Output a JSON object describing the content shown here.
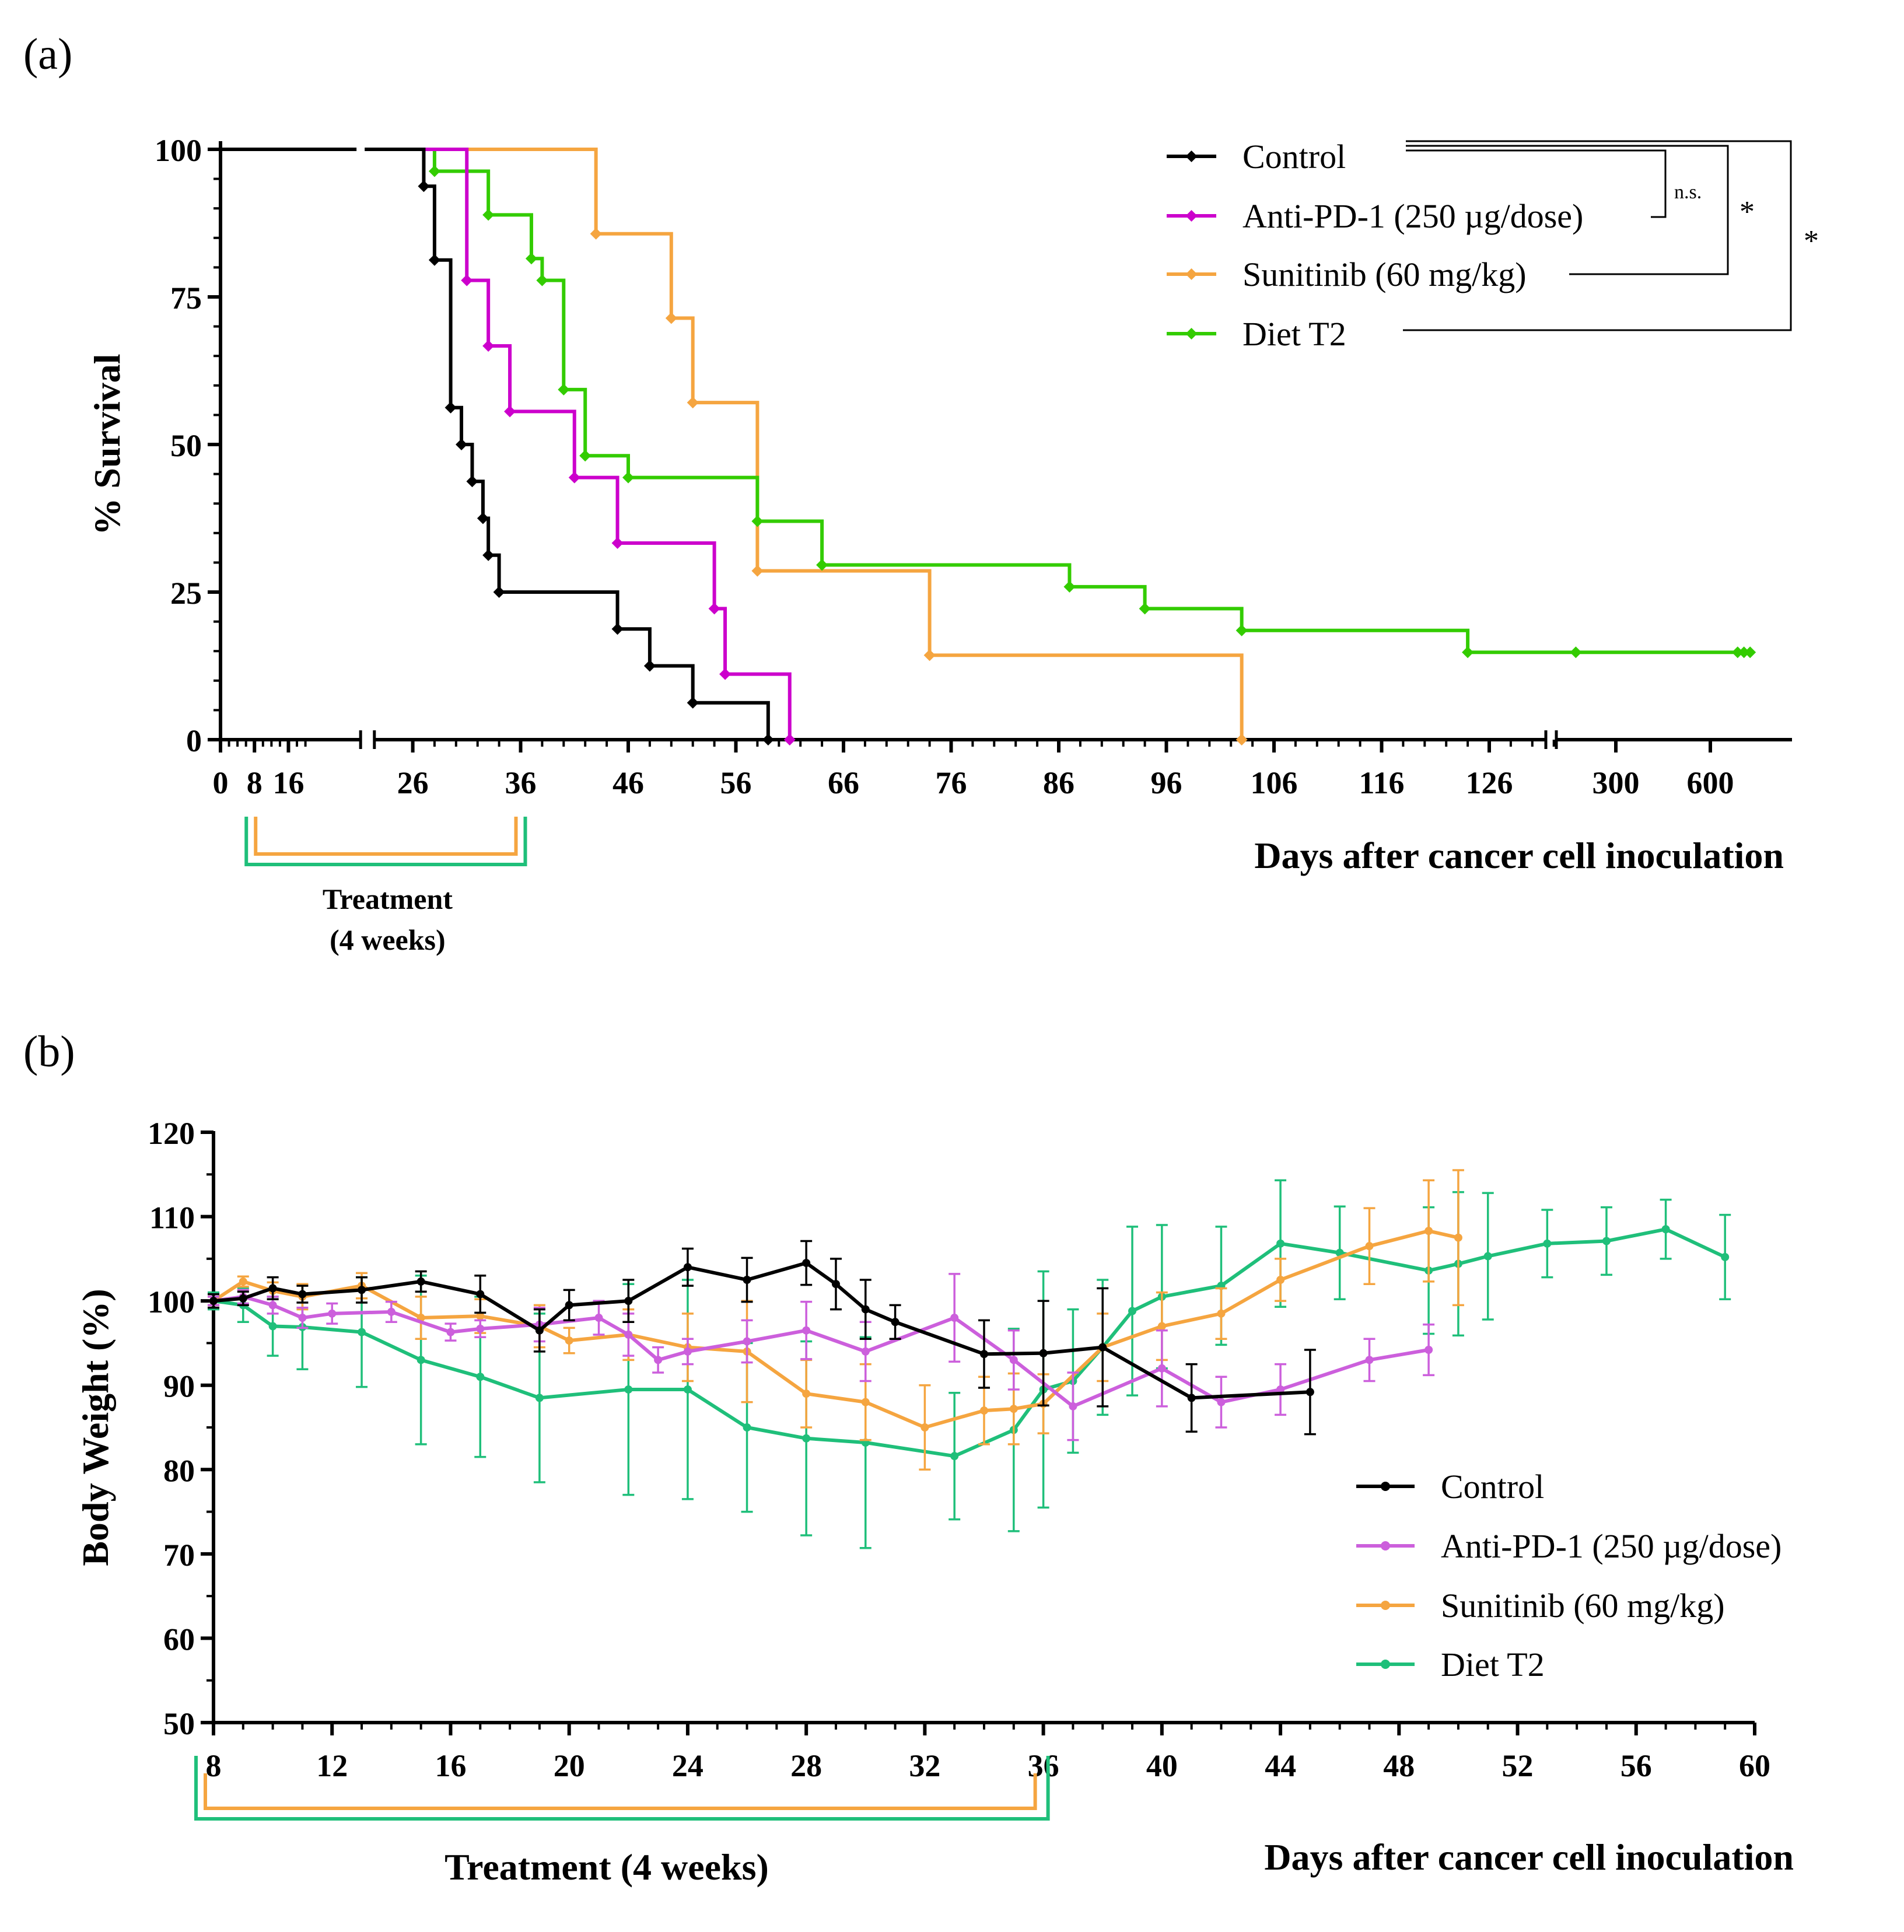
{
  "figure": {
    "panel_a_label": "(a)",
    "panel_b_label": "(b)"
  },
  "colors": {
    "Control": "#000000",
    "Anti-PD-1 (250 µg/dose)": "#cc00cc",
    "Sunitinib (60 mg/kg)": "#f5a540",
    "Diet T2": "#33cc00",
    "Diet T2 (b)": "#1fbf7a",
    "Anti-PD-1 (b)": "#cc5fdc",
    "axis": "#000000"
  },
  "chart_data": [
    {
      "type": "line",
      "subtype": "kaplan-meier",
      "title": "",
      "xlabel": "Days after cancer cell inoculation",
      "ylabel": "% Survival",
      "ylim": [
        0,
        100
      ],
      "yticks": [
        "0",
        "25",
        "50",
        "75",
        "100"
      ],
      "xticks": [
        "0",
        "8",
        "16",
        "26",
        "36",
        "46",
        "56",
        "66",
        "76",
        "86",
        "96",
        "106",
        "116",
        "126",
        "300",
        "600"
      ],
      "x_axis_breaks": [
        [
          22,
          24
        ],
        [
          134,
          150
        ]
      ],
      "legend_position": "top-right",
      "series": [
        {
          "name": "Control",
          "steps": [
            [
              0,
              100
            ],
            [
              27,
              100
            ],
            [
              27,
              93.75
            ],
            [
              28,
              81.25
            ],
            [
              29.5,
              56.25
            ],
            [
              30.5,
              50
            ],
            [
              31.5,
              43.75
            ],
            [
              32.5,
              37.5
            ],
            [
              33,
              31.25
            ],
            [
              34,
              25
            ],
            [
              45,
              18.75
            ],
            [
              48,
              12.5
            ],
            [
              52,
              6.25
            ],
            [
              59,
              0
            ]
          ],
          "censored": []
        },
        {
          "name": "Anti-PD-1 (250 µg/dose)",
          "steps": [
            [
              0,
              100
            ],
            [
              31,
              100
            ],
            [
              31,
              77.8
            ],
            [
              33,
              66.7
            ],
            [
              35,
              55.6
            ],
            [
              41,
              44.4
            ],
            [
              45,
              33.3
            ],
            [
              54,
              22.2
            ],
            [
              55,
              11.1
            ],
            [
              61,
              0
            ]
          ],
          "censored": []
        },
        {
          "name": "Sunitinib (60 mg/kg)",
          "steps": [
            [
              0,
              100
            ],
            [
              43,
              100
            ],
            [
              43,
              85.7
            ],
            [
              50,
              71.4
            ],
            [
              52,
              57.1
            ],
            [
              58,
              28.6
            ],
            [
              74,
              14.3
            ],
            [
              103,
              0
            ]
          ],
          "censored": []
        },
        {
          "name": "Diet T2",
          "steps": [
            [
              0,
              100
            ],
            [
              28,
              100
            ],
            [
              28,
              96.3
            ],
            [
              33,
              88.9
            ],
            [
              37,
              81.5
            ],
            [
              38,
              77.8
            ],
            [
              40,
              59.3
            ],
            [
              42,
              48.1
            ],
            [
              46,
              44.4
            ],
            [
              58,
              37.0
            ],
            [
              64,
              29.6
            ],
            [
              87,
              25.9
            ],
            [
              94,
              22.2
            ],
            [
              103,
              18.5
            ],
            [
              124,
              14.8
            ]
          ],
          "censored": [
            300,
            650,
            670,
            690
          ]
        }
      ],
      "significance": [
        {
          "comparison": "Control vs Anti-PD-1 (250 µg/dose)",
          "label": "n.s."
        },
        {
          "comparison": "Control vs Sunitinib (60 mg/kg)",
          "label": "*"
        },
        {
          "comparison": "Control vs Diet T2",
          "label": "*"
        }
      ],
      "annotation": {
        "label": "Treatment",
        "sublabel": "(4 weeks)",
        "start_day": 8,
        "end_day": 36
      }
    },
    {
      "type": "line",
      "title": "",
      "xlabel": "Days after cancer cell inoculation",
      "ylabel": "Body Weight (%)",
      "xlim": [
        8,
        60
      ],
      "ylim": [
        50,
        120
      ],
      "xticks": [
        "8",
        "12",
        "16",
        "20",
        "24",
        "28",
        "32",
        "36",
        "40",
        "44",
        "48",
        "52",
        "56",
        "60"
      ],
      "yticks": [
        "50",
        "60",
        "70",
        "80",
        "90",
        "100",
        "110",
        "120"
      ],
      "legend_position": "bottom-right",
      "series": [
        {
          "name": "Control",
          "x": [
            8,
            9,
            10,
            11,
            13,
            15,
            17,
            19,
            20,
            22,
            24,
            26,
            28,
            29,
            30,
            31,
            34,
            36,
            38,
            41,
            45
          ],
          "y": [
            100,
            100.3,
            101.5,
            100.8,
            101.3,
            102.3,
            100.8,
            96.5,
            99.5,
            100,
            104,
            102.5,
            104.5,
            102,
            99,
            97.5,
            93.7,
            93.8,
            94.5,
            88.5,
            89.2
          ],
          "err": [
            0.8,
            0.8,
            1.3,
            1.0,
            1.5,
            1.2,
            2.2,
            2.5,
            1.8,
            2.5,
            2.2,
            2.6,
            2.6,
            3,
            3.5,
            2,
            4,
            6.2,
            7,
            4,
            5
          ]
        },
        {
          "name": "Anti-PD-1 (250 µg/dose)",
          "x": [
            8,
            9,
            10,
            11,
            12,
            14,
            16,
            17,
            19,
            21,
            22,
            23,
            24,
            26,
            28,
            30,
            33,
            35,
            37,
            40,
            42,
            44,
            47,
            49
          ],
          "y": [
            100,
            100.5,
            99.5,
            98,
            98.5,
            98.7,
            96.3,
            96.7,
            97.2,
            98,
            96,
            93,
            94,
            95.2,
            96.5,
            94,
            98,
            93,
            87.5,
            92,
            88,
            89.5,
            93,
            94.2
          ],
          "err": [
            0.5,
            0.8,
            1,
            1.2,
            1.2,
            1.2,
            1,
            1,
            2,
            2,
            2.5,
            1.5,
            1.5,
            2.5,
            3.4,
            3.5,
            5.2,
            3.5,
            4,
            4.5,
            3,
            3,
            2.5,
            3
          ]
        },
        {
          "name": "Sunitinib (60 mg/kg)",
          "x": [
            8,
            9,
            10,
            11,
            13,
            15,
            17,
            19,
            20,
            22,
            24,
            26,
            28,
            30,
            32,
            34,
            35,
            36,
            38,
            40,
            42,
            44,
            47,
            49,
            50
          ],
          "y": [
            100,
            102.3,
            101.2,
            100.5,
            101.8,
            98,
            98.2,
            97,
            95.3,
            96,
            94.5,
            94,
            89,
            88,
            85,
            87,
            87.2,
            87.8,
            94.5,
            97,
            98.5,
            102.5,
            106.5,
            108.3,
            107.5
          ],
          "err": [
            0.5,
            0.6,
            1,
            1.5,
            1.5,
            2.5,
            2,
            2.5,
            1.5,
            3,
            4,
            6,
            4,
            4.5,
            5,
            4,
            4.2,
            3.5,
            4,
            4,
            3,
            2.5,
            4.5,
            6,
            8
          ]
        },
        {
          "name": "Diet T2",
          "x": [
            8,
            9,
            10,
            11,
            13,
            15,
            17,
            19,
            22,
            24,
            26,
            28,
            30,
            33,
            35,
            36,
            37,
            38,
            39,
            40,
            42,
            44,
            46,
            49,
            50,
            51,
            53,
            55,
            57,
            59
          ],
          "y": [
            100,
            99.5,
            97,
            96.9,
            96.3,
            93,
            91,
            88.5,
            89.5,
            89.5,
            85,
            83.7,
            83.2,
            81.6,
            84.7,
            89.5,
            90.5,
            94.5,
            98.8,
            100.5,
            101.8,
            106.8,
            105.7,
            103.6,
            104.4,
            105.3,
            106.8,
            107.1,
            108.5,
            105.2
          ],
          "err": [
            1,
            2,
            3.5,
            5,
            6.5,
            10,
            9.5,
            10,
            12.5,
            13,
            10,
            11.5,
            12.5,
            7.5,
            12,
            14,
            8.5,
            8,
            10,
            8.5,
            7,
            7.5,
            5.5,
            7.5,
            8.5,
            7.5,
            4,
            4,
            3.5,
            5
          ]
        }
      ],
      "annotation": {
        "label": "Treatment (4 weeks)",
        "start_day": 8,
        "end_day": 36
      }
    }
  ]
}
